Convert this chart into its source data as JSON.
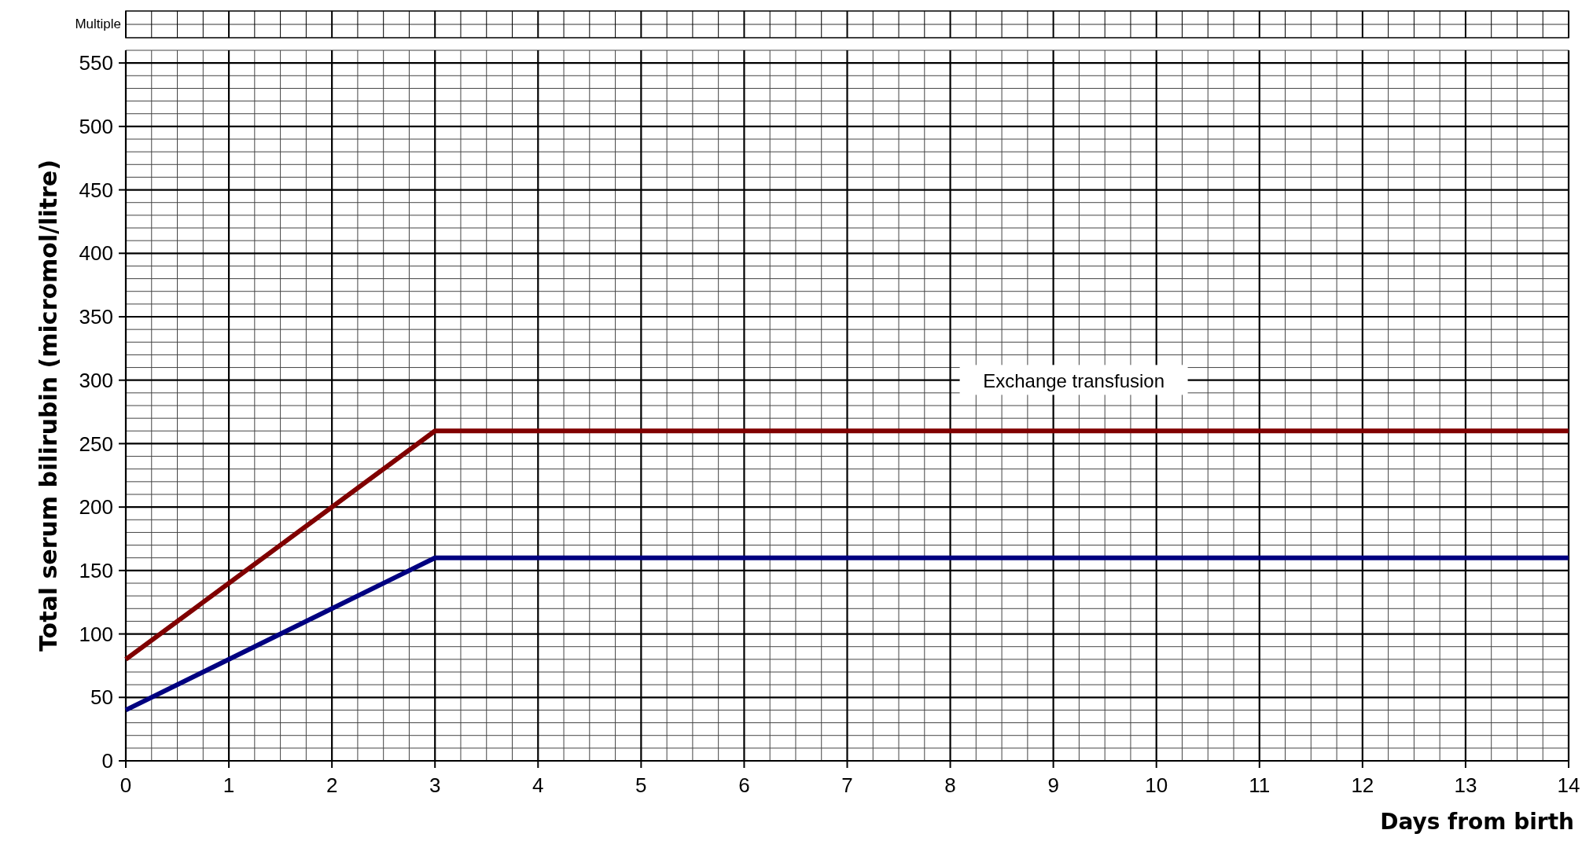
{
  "chart_data": {
    "type": "line",
    "xlabel": "Days from birth",
    "ylabel": "Total serum bilirubin (micromol/litre)",
    "xlim": [
      0,
      14
    ],
    "xticks": [
      0,
      1,
      2,
      3,
      4,
      5,
      6,
      7,
      8,
      9,
      10,
      11,
      12,
      13,
      14
    ],
    "ylim": [
      0,
      560
    ],
    "yticks": [
      0,
      50,
      100,
      150,
      200,
      250,
      300,
      350,
      400,
      450,
      500,
      550
    ],
    "grid": true,
    "marker": "none",
    "line_style": "solid",
    "series": [
      {
        "color": "#800000",
        "x": [
          0,
          3,
          14
        ],
        "values": [
          80,
          260,
          260
        ]
      },
      {
        "color": "#000080",
        "x": [
          0,
          3,
          14
        ],
        "values": [
          40,
          160,
          160
        ]
      }
    ],
    "annotations": [
      "Exchange transfusion",
      "Multiple"
    ]
  }
}
